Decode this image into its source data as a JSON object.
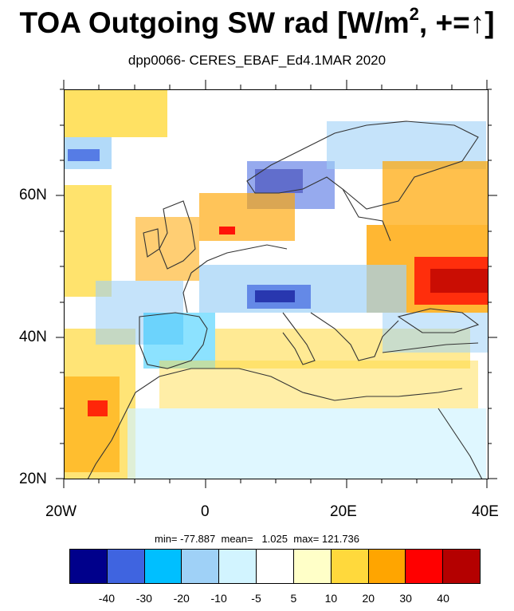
{
  "title": {
    "main": "TOA Outgoing SW rad [W/m",
    "sup": "2",
    "tail": ", +=",
    "arrow": "↑",
    "close": "]"
  },
  "subtitle": "dpp0066- CERES_EBAF_Ed4.1MAR 2020",
  "map": {
    "lon_range": [
      -20,
      40
    ],
    "lat_range": [
      20,
      75
    ],
    "lat_ticks": [
      "60N",
      "40N",
      "20N"
    ],
    "lon_ticks": [
      "20W",
      "0",
      "20E",
      "40E"
    ]
  },
  "stats": {
    "min_label": "min=",
    "min": "-77.887",
    "mean_label": "mean=",
    "mean": "1.025",
    "max_label": "max=",
    "max": "121.736"
  },
  "colorbar": {
    "colors": [
      "#00008b",
      "#3f64e0",
      "#00bfff",
      "#9fd1f7",
      "#d2f4ff",
      "#ffffff",
      "#ffffc8",
      "#ffd93c",
      "#ffa500",
      "#ff0000",
      "#b40000"
    ],
    "labels": [
      "-40",
      "-30",
      "-20",
      "-10",
      "-5",
      "5",
      "10",
      "20",
      "30",
      "40"
    ]
  }
}
